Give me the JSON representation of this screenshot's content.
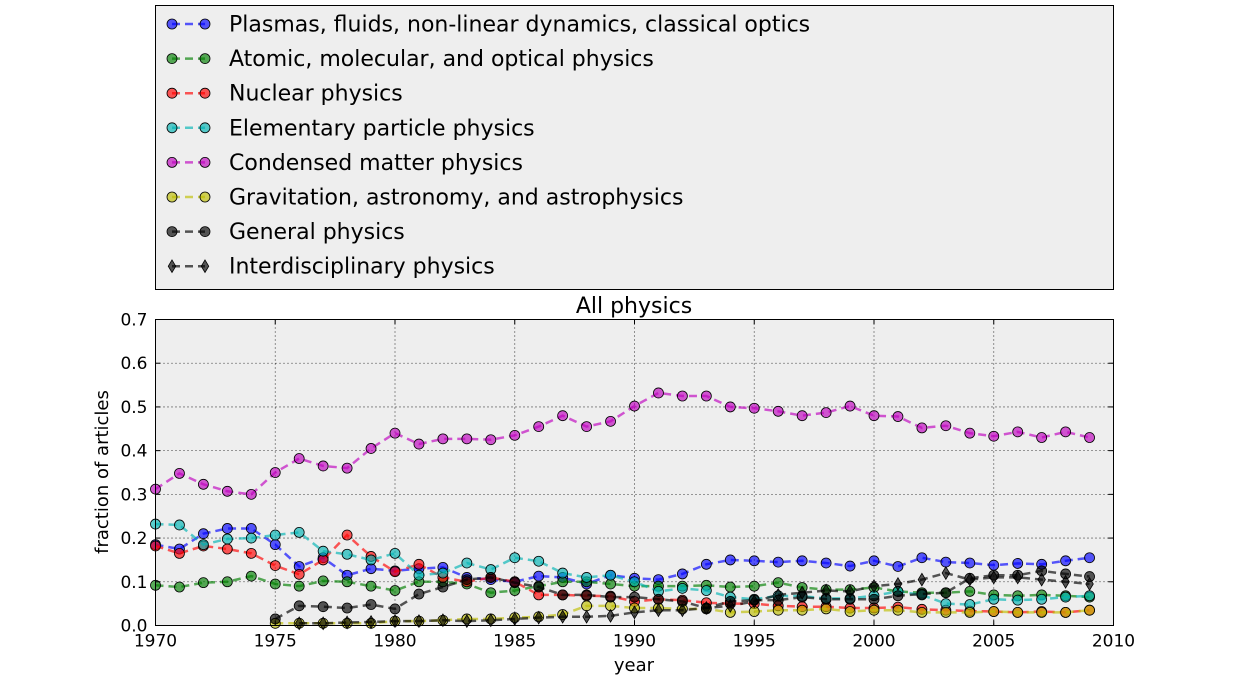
{
  "chart_data": {
    "type": "line",
    "title": "All physics",
    "xlabel": "year",
    "ylabel": "fraction of articles",
    "xlim": [
      1970,
      2010
    ],
    "ylim": [
      0.0,
      0.7
    ],
    "xticks": [
      "1970",
      "1975",
      "1980",
      "1985",
      "1990",
      "1995",
      "2000",
      "2005",
      "2010"
    ],
    "yticks": [
      "0.0",
      "0.1",
      "0.2",
      "0.3",
      "0.4",
      "0.5",
      "0.6",
      "0.7"
    ],
    "grid": true,
    "legend_position": "above plot",
    "series": [
      {
        "name": "Plasmas, fluids, non-linear dynamics, classical optics",
        "color": "#0000ff",
        "marker": "circle",
        "x": [
          1970,
          1971,
          1972,
          1973,
          1974,
          1975,
          1976,
          1977,
          1978,
          1979,
          1980,
          1981,
          1982,
          1983,
          1984,
          1985,
          1986,
          1987,
          1988,
          1989,
          1990,
          1991,
          1992,
          1993,
          1994,
          1995,
          1996,
          1997,
          1998,
          1999,
          2000,
          2001,
          2002,
          2003,
          2004,
          2005,
          2006,
          2007,
          2008,
          2009
        ],
        "y": [
          0.185,
          0.175,
          0.21,
          0.222,
          0.222,
          0.185,
          0.135,
          0.155,
          0.115,
          0.13,
          0.125,
          0.13,
          0.133,
          0.11,
          0.105,
          0.1,
          0.113,
          0.11,
          0.095,
          0.115,
          0.108,
          0.105,
          0.118,
          0.14,
          0.15,
          0.148,
          0.145,
          0.148,
          0.143,
          0.136,
          0.148,
          0.135,
          0.155,
          0.145,
          0.143,
          0.138,
          0.142,
          0.14,
          0.148,
          0.155
        ]
      },
      {
        "name": "Atomic, molecular, and optical physics",
        "color": "#008000",
        "marker": "circle",
        "x": [
          1970,
          1971,
          1972,
          1973,
          1974,
          1975,
          1976,
          1977,
          1978,
          1979,
          1980,
          1981,
          1982,
          1983,
          1984,
          1985,
          1986,
          1987,
          1988,
          1989,
          1990,
          1991,
          1992,
          1993,
          1994,
          1995,
          1996,
          1997,
          1998,
          1999,
          2000,
          2001,
          2002,
          2003,
          2004,
          2005,
          2006,
          2007,
          2008,
          2009
        ],
        "y": [
          0.092,
          0.088,
          0.098,
          0.1,
          0.113,
          0.095,
          0.09,
          0.102,
          0.1,
          0.09,
          0.08,
          0.1,
          0.1,
          0.095,
          0.075,
          0.08,
          0.09,
          0.1,
          0.1,
          0.095,
          0.09,
          0.09,
          0.09,
          0.092,
          0.088,
          0.09,
          0.098,
          0.087,
          0.082,
          0.082,
          0.087,
          0.078,
          0.075,
          0.075,
          0.078,
          0.07,
          0.068,
          0.07,
          0.068,
          0.065
        ]
      },
      {
        "name": "Nuclear physics",
        "color": "#ff0000",
        "marker": "circle",
        "x": [
          1970,
          1971,
          1972,
          1973,
          1974,
          1975,
          1976,
          1977,
          1978,
          1979,
          1980,
          1981,
          1982,
          1983,
          1984,
          1985,
          1986,
          1987,
          1988,
          1989,
          1990,
          1991,
          1992,
          1993,
          1994,
          1995,
          1996,
          1997,
          1998,
          1999,
          2000,
          2001,
          2002,
          2003,
          2004,
          2005,
          2006,
          2007,
          2008,
          2009
        ],
        "y": [
          0.182,
          0.165,
          0.182,
          0.175,
          0.165,
          0.137,
          0.117,
          0.15,
          0.207,
          0.158,
          0.123,
          0.14,
          0.11,
          0.1,
          0.11,
          0.1,
          0.07,
          0.07,
          0.068,
          0.067,
          0.055,
          0.06,
          0.058,
          0.052,
          0.05,
          0.05,
          0.045,
          0.043,
          0.043,
          0.04,
          0.04,
          0.042,
          0.037,
          0.035,
          0.033,
          0.032,
          0.03,
          0.032,
          0.03,
          0.035
        ]
      },
      {
        "name": "Elementary particle physics",
        "color": "#00b3b3",
        "marker": "circle",
        "x": [
          1970,
          1971,
          1972,
          1973,
          1974,
          1975,
          1976,
          1977,
          1978,
          1979,
          1980,
          1981,
          1982,
          1983,
          1984,
          1985,
          1986,
          1987,
          1988,
          1989,
          1990,
          1991,
          1992,
          1993,
          1994,
          1995,
          1996,
          1997,
          1998,
          1999,
          2000,
          2001,
          2002,
          2003,
          2004,
          2005,
          2006,
          2007,
          2008,
          2009
        ],
        "y": [
          0.232,
          0.23,
          0.185,
          0.198,
          0.2,
          0.207,
          0.213,
          0.17,
          0.163,
          0.15,
          0.165,
          0.115,
          0.12,
          0.143,
          0.128,
          0.155,
          0.147,
          0.12,
          0.11,
          0.115,
          0.1,
          0.078,
          0.085,
          0.08,
          0.065,
          0.06,
          0.068,
          0.067,
          0.062,
          0.062,
          0.068,
          0.078,
          0.07,
          0.05,
          0.048,
          0.06,
          0.058,
          0.06,
          0.065,
          0.068
        ]
      },
      {
        "name": "Condensed matter physics",
        "color": "#bf00bf",
        "marker": "circle",
        "x": [
          1970,
          1971,
          1972,
          1973,
          1974,
          1975,
          1976,
          1977,
          1978,
          1979,
          1980,
          1981,
          1982,
          1983,
          1984,
          1985,
          1986,
          1987,
          1988,
          1989,
          1990,
          1991,
          1992,
          1993,
          1994,
          1995,
          1996,
          1997,
          1998,
          1999,
          2000,
          2001,
          2002,
          2003,
          2004,
          2005,
          2006,
          2007,
          2008,
          2009
        ],
        "y": [
          0.312,
          0.348,
          0.323,
          0.307,
          0.3,
          0.35,
          0.382,
          0.365,
          0.36,
          0.405,
          0.44,
          0.415,
          0.427,
          0.427,
          0.425,
          0.435,
          0.455,
          0.48,
          0.455,
          0.467,
          0.502,
          0.532,
          0.525,
          0.525,
          0.5,
          0.497,
          0.49,
          0.48,
          0.487,
          0.502,
          0.48,
          0.478,
          0.452,
          0.457,
          0.44,
          0.433,
          0.443,
          0.43,
          0.443,
          0.43
        ]
      },
      {
        "name": "Gravitation, astronomy, and astrophysics",
        "color": "#bfbf00",
        "marker": "circle",
        "x": [
          1975,
          1976,
          1977,
          1978,
          1979,
          1980,
          1981,
          1982,
          1983,
          1984,
          1985,
          1986,
          1987,
          1988,
          1989,
          1990,
          1991,
          1992,
          1993,
          1994,
          1995,
          1996,
          1997,
          1998,
          1999,
          2000,
          2001,
          2002,
          2003,
          2004,
          2005,
          2006,
          2007,
          2008,
          2009
        ],
        "y": [
          0.005,
          0.005,
          0.005,
          0.005,
          0.005,
          0.01,
          0.01,
          0.012,
          0.015,
          0.015,
          0.018,
          0.02,
          0.025,
          0.045,
          0.045,
          0.04,
          0.04,
          0.038,
          0.038,
          0.03,
          0.032,
          0.035,
          0.035,
          0.038,
          0.032,
          0.035,
          0.035,
          0.03,
          0.03,
          0.03,
          0.032,
          0.03,
          0.03,
          0.03,
          0.035
        ]
      },
      {
        "name": "General physics",
        "color": "#000000",
        "marker": "circle",
        "x": [
          1975,
          1976,
          1977,
          1978,
          1979,
          1980,
          1981,
          1982,
          1983,
          1984,
          1985,
          1986,
          1987,
          1988,
          1989,
          1990,
          1991,
          1992,
          1993,
          1994,
          1995,
          1996,
          1997,
          1998,
          1999,
          2000,
          2001,
          2002,
          2003,
          2004,
          2005,
          2006,
          2007,
          2008,
          2009
        ],
        "y": [
          0.015,
          0.045,
          0.043,
          0.04,
          0.048,
          0.038,
          0.072,
          0.088,
          0.105,
          0.11,
          0.098,
          0.088,
          0.07,
          0.07,
          0.065,
          0.065,
          0.06,
          0.055,
          0.04,
          0.055,
          0.058,
          0.058,
          0.065,
          0.06,
          0.06,
          0.06,
          0.068,
          0.072,
          0.075,
          0.108,
          0.115,
          0.115,
          0.125,
          0.118,
          0.112
        ]
      },
      {
        "name": "Interdisciplinary physics",
        "color": "#000000",
        "marker": "diamond",
        "x": [
          1976,
          1977,
          1978,
          1979,
          1980,
          1981,
          1982,
          1983,
          1984,
          1985,
          1986,
          1987,
          1988,
          1989,
          1990,
          1991,
          1992,
          1993,
          1994,
          1995,
          1996,
          1997,
          1998,
          1999,
          2000,
          2001,
          2002,
          2003,
          2004,
          2005,
          2006,
          2007,
          2008,
          2009
        ],
        "y": [
          0.005,
          0.005,
          0.007,
          0.008,
          0.01,
          0.01,
          0.012,
          0.01,
          0.012,
          0.015,
          0.018,
          0.02,
          0.02,
          0.022,
          0.03,
          0.035,
          0.035,
          0.04,
          0.045,
          0.055,
          0.07,
          0.075,
          0.08,
          0.078,
          0.09,
          0.095,
          0.105,
          0.12,
          0.105,
          0.11,
          0.11,
          0.105,
          0.1,
          0.095
        ]
      }
    ]
  }
}
